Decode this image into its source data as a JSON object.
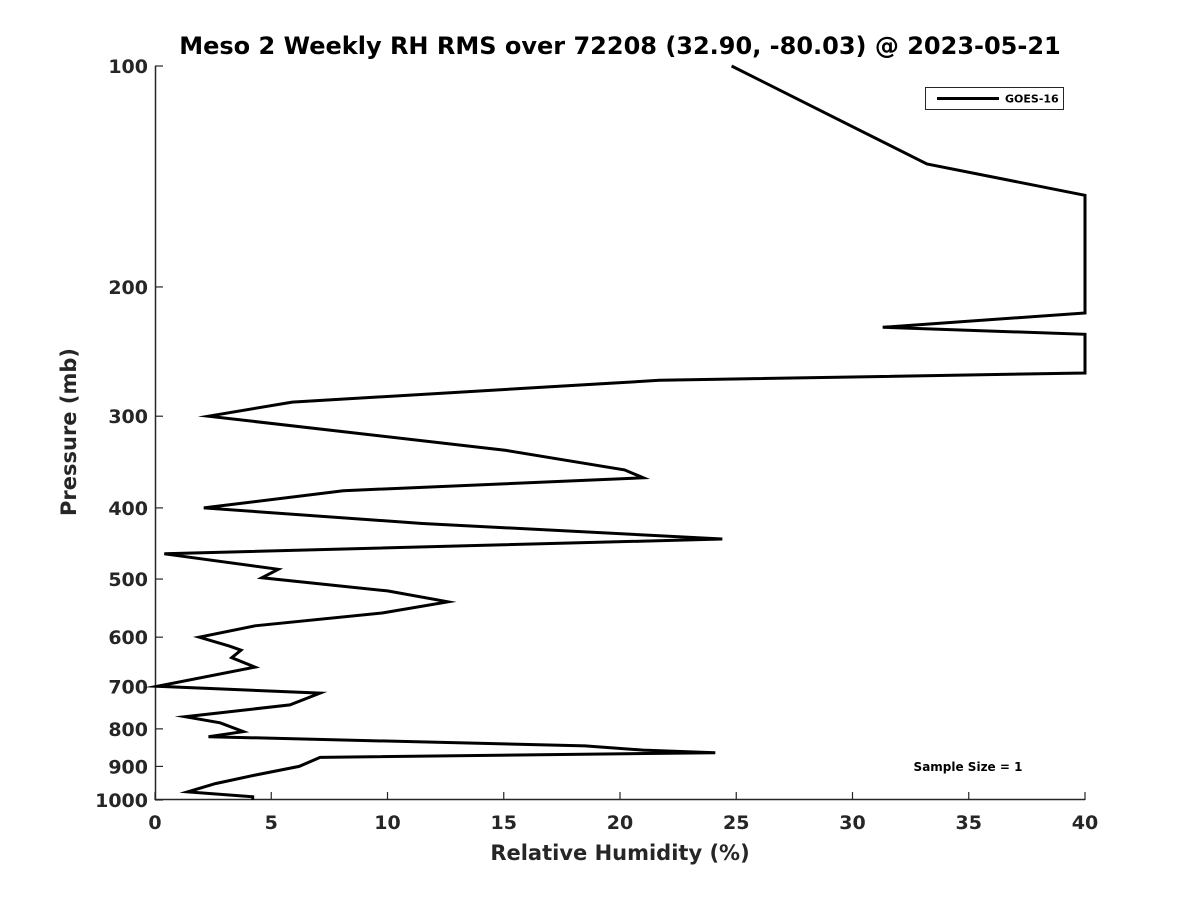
{
  "chart_data": {
    "type": "line",
    "title": "Meso 2 Weekly RH RMS over 72208 (32.90, -80.03) @ 2023-05-21",
    "xlabel": "Relative Humidity (%)",
    "ylabel": "Pressure (mb)",
    "xlim": [
      0,
      40
    ],
    "ylim": [
      100,
      1000
    ],
    "y_scale": "log",
    "y_reversed": true,
    "x_ticks": [
      "0",
      "5",
      "10",
      "15",
      "20",
      "25",
      "30",
      "35",
      "40"
    ],
    "y_ticks": [
      "100",
      "200",
      "300",
      "400",
      "500",
      "600",
      "700",
      "800",
      "900",
      "1000"
    ],
    "grid": false,
    "legend_position": "top-right",
    "annotation": "Sample Size = 1",
    "series": [
      {
        "name": "GOES-16",
        "color": "#000000",
        "points": [
          [
            4.2,
            1000
          ],
          [
            4.2,
            990
          ],
          [
            1.4,
            975
          ],
          [
            2.6,
            950
          ],
          [
            4.3,
            925
          ],
          [
            6.2,
            900
          ],
          [
            7.1,
            875
          ],
          [
            24.1,
            862
          ],
          [
            21.0,
            855
          ],
          [
            18.5,
            844
          ],
          [
            2.3,
            820
          ],
          [
            3.8,
            807
          ],
          [
            2.8,
            785
          ],
          [
            1.3,
            770
          ],
          [
            5.8,
            742
          ],
          [
            7.1,
            715
          ],
          [
            0.1,
            700
          ],
          [
            4.3,
            659
          ],
          [
            3.3,
            640
          ],
          [
            3.7,
            625
          ],
          [
            3.2,
            617
          ],
          [
            1.9,
            600
          ],
          [
            4.3,
            579
          ],
          [
            9.8,
            556
          ],
          [
            12.6,
            537
          ],
          [
            10.0,
            519
          ],
          [
            4.6,
            498
          ],
          [
            5.3,
            485
          ],
          [
            0.4,
            462
          ],
          [
            24.4,
            441
          ],
          [
            11.5,
            420
          ],
          [
            2.1,
            400
          ],
          [
            8.1,
            379
          ],
          [
            21.0,
            364
          ],
          [
            20.2,
            355
          ],
          [
            15.1,
            334
          ],
          [
            2.3,
            300
          ],
          [
            5.9,
            287
          ],
          [
            21.7,
            268
          ],
          [
            40.0,
            262
          ],
          [
            40.0,
            232
          ],
          [
            31.3,
            227
          ],
          [
            40.0,
            217
          ],
          [
            40.0,
            150
          ],
          [
            33.2,
            136
          ],
          [
            24.8,
            100
          ]
        ]
      }
    ]
  }
}
